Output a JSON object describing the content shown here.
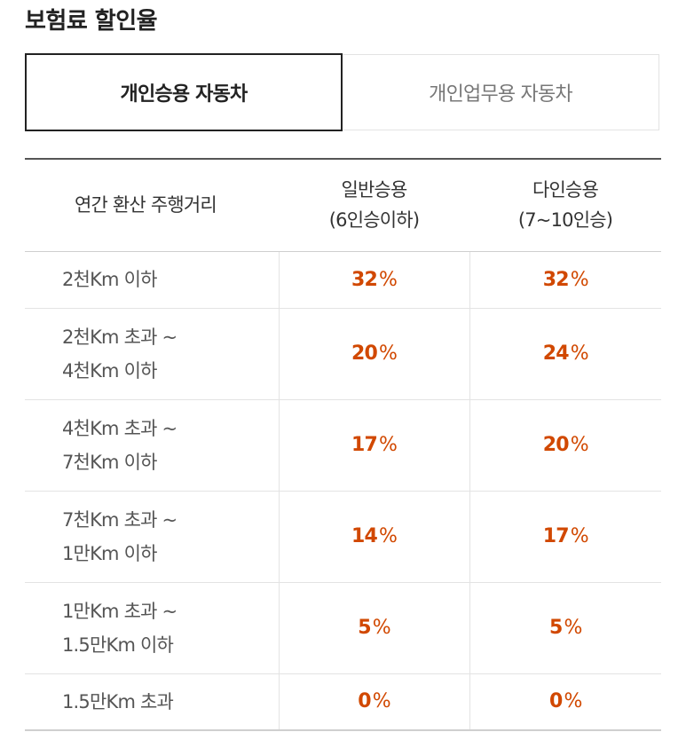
{
  "page": {
    "title": "보험료 할인율"
  },
  "tabs": [
    {
      "label": "개인승용 자동차",
      "active": true
    },
    {
      "label": "개인업무용 자동차",
      "active": false
    }
  ],
  "table": {
    "headers": {
      "distance": "연간 환산 주행거리",
      "general_line1": "일반승용",
      "general_line2": "(6인승이하)",
      "multi_line1": "다인승용",
      "multi_line2": "(7~10인승)"
    },
    "percent_sign": "%",
    "rows": [
      {
        "range_line1": "2천Km 이하",
        "range_line2": "",
        "general": "32",
        "multi": "32"
      },
      {
        "range_line1": "2천Km 초과 ~",
        "range_line2": "4천Km 이하",
        "general": "20",
        "multi": "24"
      },
      {
        "range_line1": "4천Km 초과 ~",
        "range_line2": "7천Km 이하",
        "general": "17",
        "multi": "20"
      },
      {
        "range_line1": "7천Km 초과 ~",
        "range_line2": "1만Km 이하",
        "general": "14",
        "multi": "17"
      },
      {
        "range_line1": "1만Km 초과 ~",
        "range_line2": "1.5만Km 이하",
        "general": "5",
        "multi": "5"
      },
      {
        "range_line1": "1.5만Km 초과",
        "range_line2": "",
        "general": "0",
        "multi": "0"
      }
    ]
  },
  "colors": {
    "accent": "#d14800",
    "text": "#333333",
    "border": "#e3e3e3"
  }
}
